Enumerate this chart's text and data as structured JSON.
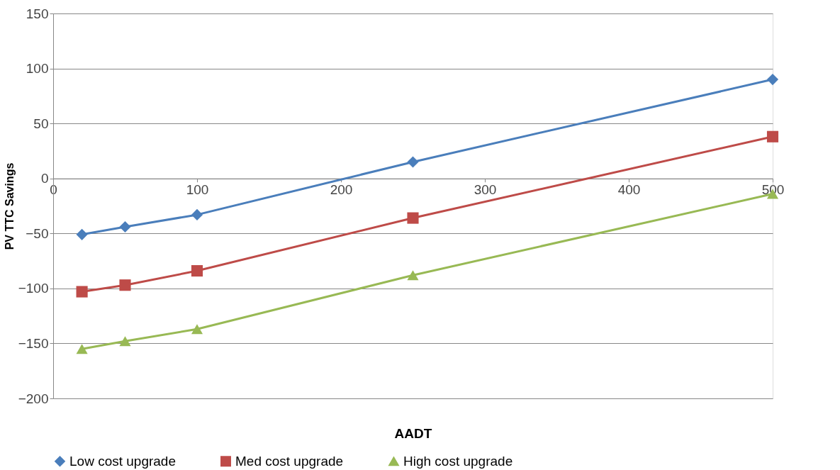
{
  "chart_data": {
    "type": "line",
    "xlabel": "AADT",
    "ylabel": "PV TTC Savings",
    "xlim": [
      0,
      500
    ],
    "xticks": [
      0,
      100,
      200,
      300,
      400,
      500
    ],
    "ylim": [
      -200,
      150
    ],
    "yticks": [
      -200,
      -150,
      -100,
      -50,
      0,
      50,
      100,
      150
    ],
    "grid": "y",
    "legend": "bottom",
    "line_style": "solid",
    "series": [
      {
        "name": "Low cost upgrade",
        "color": "#4a7ebb",
        "marker": "diamond",
        "x": [
          20,
          50,
          100,
          250,
          500
        ],
        "values": [
          -51,
          -44,
          -33,
          15,
          90
        ]
      },
      {
        "name": "Med cost upgrade",
        "color": "#be4b48",
        "marker": "square",
        "x": [
          20,
          50,
          100,
          250,
          500
        ],
        "values": [
          -103,
          -97,
          -84,
          -36,
          38
        ]
      },
      {
        "name": "High cost upgrade",
        "color": "#98b954",
        "marker": "triangle",
        "x": [
          20,
          50,
          100,
          250,
          500
        ],
        "values": [
          -155,
          -148,
          -137,
          -88,
          -14
        ]
      }
    ]
  }
}
